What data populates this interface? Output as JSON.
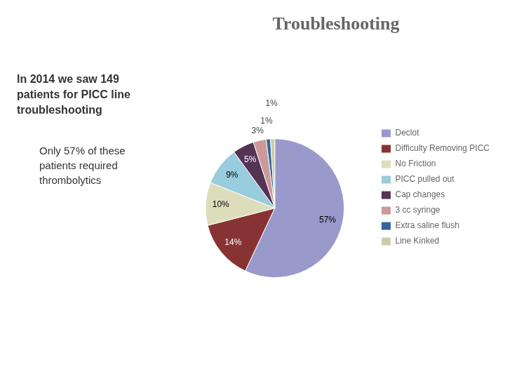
{
  "chart_data": {
    "type": "pie",
    "title": "Troubleshooting",
    "categories": [
      "Declot",
      "Difficulty Removing PICC",
      "No Friction",
      "PICC pulled out",
      "Cap changes",
      "3 cc syringe",
      "Extra saline flush",
      "Line Kinked"
    ],
    "values": [
      57,
      14,
      10,
      9,
      5,
      3,
      1,
      1
    ],
    "value_labels": [
      "57%",
      "14%",
      "10%",
      "9%",
      "5%",
      "3%",
      "1%",
      "1%"
    ],
    "colors": [
      "#9999cc",
      "#883333",
      "#ddddbb",
      "#99ccdd",
      "#553355",
      "#cc9999",
      "#336699",
      "#ccccaa"
    ],
    "data_labels": true,
    "legend": "right",
    "annotations": [
      "In 2014 we saw 149\npatients for PICC line\ntroubleshooting",
      "Only 57% of these\npatients required\nthrombolytics"
    ]
  }
}
